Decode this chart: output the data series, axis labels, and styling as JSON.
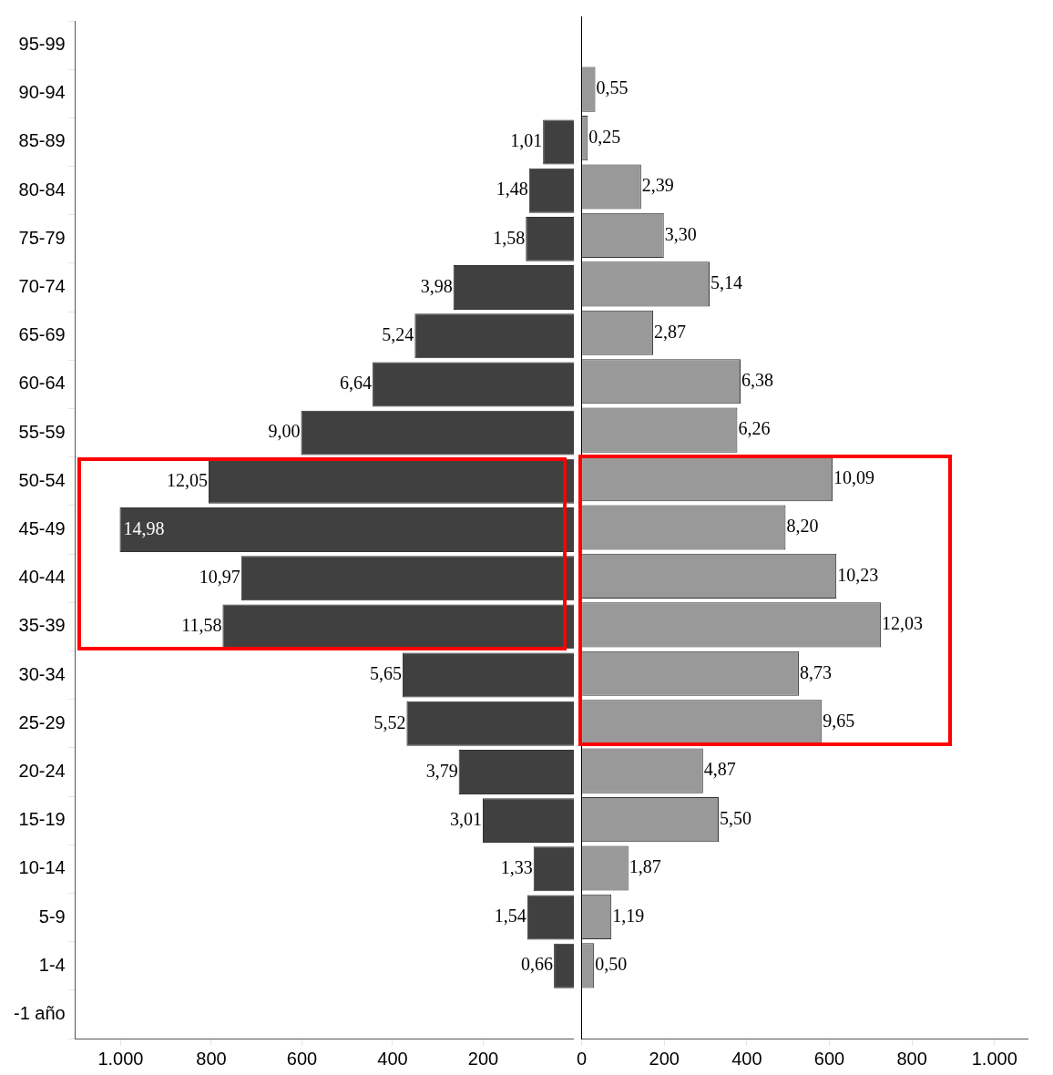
{
  "chart_data": [
    {
      "type": "bar",
      "orientation": "horizontal",
      "categories": [
        "95-99",
        "90-94",
        "85-89",
        "80-84",
        "75-79",
        "70-74",
        "65-69",
        "60-64",
        "55-59",
        "50-54",
        "45-49",
        "40-44",
        "35-39",
        "30-34",
        "25-29",
        "20-24",
        "15-19",
        "10-14",
        "5-9",
        "1-4",
        "-1 año"
      ],
      "series": [
        {
          "color": "#404040",
          "values": [
            null,
            null,
            68,
            99,
            106,
            266,
            351,
            444,
            602,
            806,
            1002,
            734,
            775,
            378,
            369,
            254,
            201,
            89,
            103,
            44,
            null
          ]
        }
      ],
      "annotations": [
        {
          "text": "1,01",
          "x": 68,
          "y": "85-89"
        },
        {
          "text": "1,48",
          "x": 99,
          "y": "80-84"
        },
        {
          "text": "1,58",
          "x": 106,
          "y": "75-79"
        },
        {
          "text": "3,98",
          "x": 266,
          "y": "70-74"
        },
        {
          "text": "5,24",
          "x": 351,
          "y": "65-69"
        },
        {
          "text": "6,64",
          "x": 444,
          "y": "60-64"
        },
        {
          "text": "9,00",
          "x": 602,
          "y": "55-59"
        },
        {
          "text": "12,05",
          "x": 806,
          "y": "50-54"
        },
        {
          "text": "14,98",
          "x": 1002,
          "y": "45-49"
        },
        {
          "text": "10,97",
          "x": 734,
          "y": "40-44"
        },
        {
          "text": "11,58",
          "x": 775,
          "y": "35-39"
        },
        {
          "text": "5,65",
          "x": 378,
          "y": "30-34"
        },
        {
          "text": "5,52",
          "x": 369,
          "y": "25-29"
        },
        {
          "text": "3,79",
          "x": 254,
          "y": "20-24"
        },
        {
          "text": "3,01",
          "x": 201,
          "y": "15-19"
        },
        {
          "text": "1,33",
          "x": 89,
          "y": "10-14"
        },
        {
          "text": "1,54",
          "x": 103,
          "y": "5-9"
        },
        {
          "text": "0,66",
          "x": 44,
          "y": "1-4"
        }
      ],
      "xlim": [
        1100,
        0
      ],
      "xticks": [
        {
          "value": 1000,
          "label": "1.000"
        },
        800,
        600,
        400,
        200
      ],
      "grid": false,
      "legend": false
    },
    {
      "type": "bar",
      "orientation": "horizontal",
      "categories": [
        "95-99",
        "90-94",
        "85-89",
        "80-84",
        "75-79",
        "70-74",
        "65-69",
        "60-64",
        "55-59",
        "50-54",
        "45-49",
        "40-44",
        "35-39",
        "30-34",
        "25-29",
        "20-24",
        "15-19",
        "10-14",
        "5-9",
        "1-4",
        "-1 año"
      ],
      "series": [
        {
          "color": "#999999",
          "values": [
            null,
            33,
            15,
            144,
            199,
            310,
            173,
            385,
            377,
            608,
            494,
            617,
            725,
            526,
            582,
            294,
            332,
            113,
            72,
            30,
            null
          ]
        }
      ],
      "annotations": [
        {
          "text": "0,55",
          "x": 33,
          "y": "90-94"
        },
        {
          "text": "0,25",
          "x": 15,
          "y": "85-89"
        },
        {
          "text": "2,39",
          "x": 144,
          "y": "80-84"
        },
        {
          "text": "3,30",
          "x": 199,
          "y": "75-79"
        },
        {
          "text": "5,14",
          "x": 310,
          "y": "70-74"
        },
        {
          "text": "2,87",
          "x": 173,
          "y": "65-69"
        },
        {
          "text": "6,38",
          "x": 385,
          "y": "60-64"
        },
        {
          "text": "6,26",
          "x": 377,
          "y": "55-59"
        },
        {
          "text": "10,09",
          "x": 608,
          "y": "50-54"
        },
        {
          "text": "8,20",
          "x": 494,
          "y": "45-49"
        },
        {
          "text": "10,23",
          "x": 617,
          "y": "40-44"
        },
        {
          "text": "12,03",
          "x": 725,
          "y": "35-39"
        },
        {
          "text": "8,73",
          "x": 526,
          "y": "30-34"
        },
        {
          "text": "9,65",
          "x": 582,
          "y": "25-29"
        },
        {
          "text": "4,87",
          "x": 294,
          "y": "20-24"
        },
        {
          "text": "5,50",
          "x": 332,
          "y": "15-19"
        },
        {
          "text": "1,87",
          "x": 113,
          "y": "10-14"
        },
        {
          "text": "1,19",
          "x": 72,
          "y": "5-9"
        },
        {
          "text": "0,50",
          "x": 30,
          "y": "1-4"
        }
      ],
      "xlim": [
        0,
        1080
      ],
      "xticks": [
        0,
        200,
        400,
        600,
        800,
        {
          "value": 1000,
          "label": "1.000"
        }
      ],
      "tick_labels": "x",
      "grid": false,
      "legend": false
    }
  ]
}
